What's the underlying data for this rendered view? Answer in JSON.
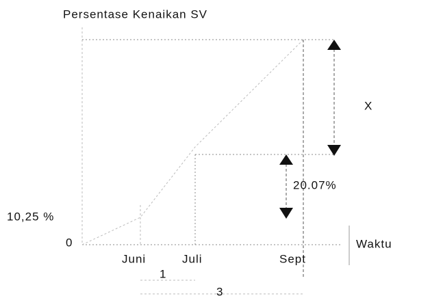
{
  "title": "Persentase Kenaikan SV",
  "y_labels": {
    "zero": "0",
    "first": "10,25 %"
  },
  "x_labels": [
    "Juni",
    "Juli",
    "Sept"
  ],
  "axis_label": "Waktu",
  "annotations": {
    "x": "X",
    "difference": "20.07%",
    "interval_1": "1",
    "interval_3": "3"
  }
}
